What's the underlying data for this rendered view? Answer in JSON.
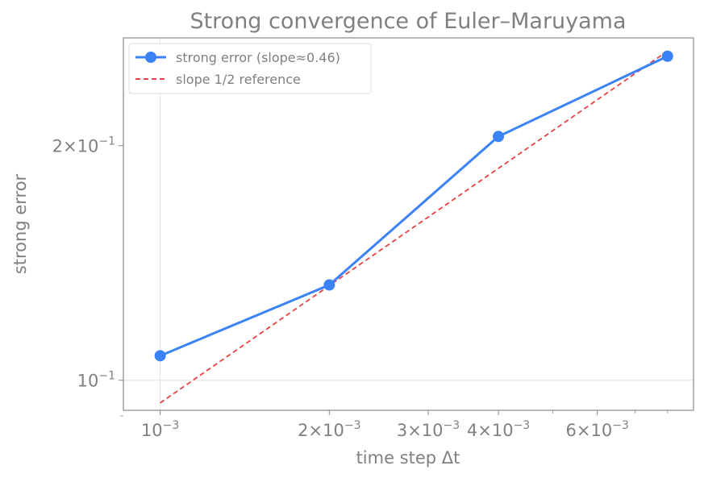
{
  "chart_data": {
    "type": "line",
    "title": "Strong convergence of Euler–Maruyama",
    "xlabel": "time step Δt",
    "ylabel": "strong error",
    "x_scale": "log",
    "y_scale": "log",
    "xlim": [
      0.00086,
      0.0089
    ],
    "ylim": [
      0.0915,
      0.275
    ],
    "grid": "partial",
    "legend_position": "top-left",
    "x_ticks": [
      {
        "value": 0.001,
        "mantissa": "",
        "exp": "−3"
      },
      {
        "value": 0.002,
        "mantissa": "2×",
        "exp": "−3"
      },
      {
        "value": 0.003,
        "mantissa": "3×",
        "exp": "−3"
      },
      {
        "value": 0.004,
        "mantissa": "4×",
        "exp": "−3"
      },
      {
        "value": 0.006,
        "mantissa": "6×",
        "exp": "−3"
      }
    ],
    "x_minor_ticks": [
      0.005,
      0.007,
      0.008
    ],
    "y_ticks": [
      {
        "value": 0.1,
        "mantissa": "",
        "exp": "−1"
      },
      {
        "value": 0.2,
        "mantissa": "2×",
        "exp": "−1"
      }
    ],
    "y_minor_ticks": [
      0.09
    ],
    "series": [
      {
        "name": "strong error (slope≈0.46)",
        "color": "#3b82f6",
        "style": "solid-with-markers",
        "x": [
          0.001,
          0.002,
          0.004,
          0.008
        ],
        "y": [
          0.1075,
          0.1325,
          0.2055,
          0.2605
        ]
      },
      {
        "name": "slope 1/2 reference",
        "color": "#e84343",
        "style": "dashed",
        "x": [
          0.001,
          0.008
        ],
        "y": [
          0.0935,
          0.2645
        ]
      }
    ]
  }
}
